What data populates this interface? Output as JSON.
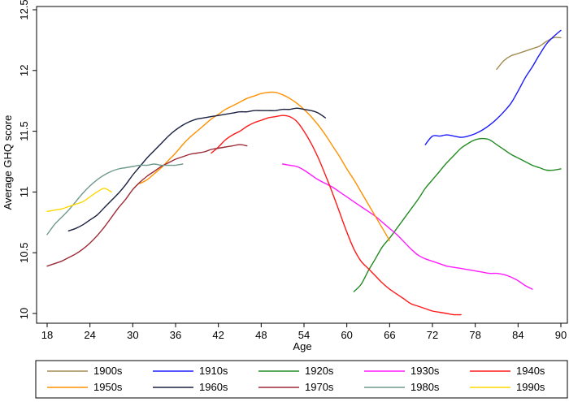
{
  "chart_data": {
    "type": "line",
    "title": "",
    "xlabel": "Age",
    "ylabel": "Average GHQ score",
    "xlim": [
      18,
      90
    ],
    "ylim": [
      10,
      12.5
    ],
    "xticks": [
      18,
      24,
      30,
      36,
      42,
      48,
      54,
      60,
      66,
      72,
      78,
      84,
      90
    ],
    "yticks": [
      10,
      10.5,
      11,
      11.5,
      12,
      12.5
    ],
    "xtick_labels": [
      "18",
      "24",
      "30",
      "36",
      "42",
      "48",
      "54",
      "60",
      "66",
      "72",
      "78",
      "84",
      "90"
    ],
    "ytick_labels": [
      "10",
      "10.5",
      "11",
      "11.5",
      "12",
      "12.5"
    ],
    "grid": false,
    "legend_position": "bottom",
    "series": [
      {
        "name": "1900s",
        "color": "#a08c50",
        "x": [
          81,
          82,
          83,
          84,
          85,
          86,
          87,
          88,
          89,
          90
        ],
        "y": [
          12.01,
          12.08,
          12.12,
          12.14,
          12.16,
          12.18,
          12.2,
          12.24,
          12.27,
          12.27
        ]
      },
      {
        "name": "1910s",
        "color": "#1a1aff",
        "x": [
          71,
          72,
          73,
          74,
          75,
          76,
          77,
          78,
          79,
          80,
          81,
          82,
          83,
          84,
          85,
          86,
          87,
          88,
          89,
          90
        ],
        "y": [
          11.39,
          11.46,
          11.46,
          11.47,
          11.46,
          11.45,
          11.46,
          11.48,
          11.51,
          11.55,
          11.6,
          11.66,
          11.73,
          11.83,
          11.94,
          12.03,
          12.13,
          12.22,
          12.28,
          12.33
        ]
      },
      {
        "name": "1920s",
        "color": "#228b22",
        "x": [
          61,
          62,
          63,
          64,
          65,
          66,
          67,
          68,
          69,
          70,
          71,
          72,
          73,
          74,
          75,
          76,
          77,
          78,
          79,
          80,
          81,
          82,
          83,
          84,
          85,
          86,
          87,
          88,
          89,
          90
        ],
        "y": [
          10.18,
          10.24,
          10.35,
          10.45,
          10.55,
          10.62,
          10.7,
          10.78,
          10.86,
          10.94,
          11.03,
          11.1,
          11.17,
          11.24,
          11.3,
          11.36,
          11.4,
          11.43,
          11.44,
          11.43,
          11.39,
          11.35,
          11.31,
          11.28,
          11.25,
          11.22,
          11.2,
          11.18,
          11.18,
          11.19
        ]
      },
      {
        "name": "1930s",
        "color": "#ff1aff",
        "x": [
          51,
          52,
          53,
          54,
          55,
          56,
          57,
          58,
          59,
          60,
          61,
          62,
          63,
          64,
          65,
          66,
          67,
          68,
          69,
          70,
          71,
          72,
          73,
          74,
          75,
          76,
          77,
          78,
          79,
          80,
          81,
          82,
          83,
          84,
          85,
          86
        ],
        "y": [
          11.23,
          11.22,
          11.21,
          11.18,
          11.14,
          11.1,
          11.07,
          11.04,
          11.0,
          10.96,
          10.92,
          10.88,
          10.84,
          10.8,
          10.75,
          10.7,
          10.65,
          10.59,
          10.53,
          10.48,
          10.45,
          10.43,
          10.41,
          10.39,
          10.38,
          10.37,
          10.36,
          10.35,
          10.34,
          10.33,
          10.33,
          10.32,
          10.3,
          10.27,
          10.23,
          10.2
        ]
      },
      {
        "name": "1940s",
        "color": "#ff1a1a",
        "x": [
          41,
          42,
          43,
          44,
          45,
          46,
          47,
          48,
          49,
          50,
          51,
          52,
          53,
          54,
          55,
          56,
          57,
          58,
          59,
          60,
          61,
          62,
          63,
          64,
          65,
          66,
          67,
          68,
          69,
          70,
          71,
          72,
          73,
          74,
          75,
          76
        ],
        "y": [
          11.32,
          11.37,
          11.43,
          11.47,
          11.5,
          11.54,
          11.57,
          11.59,
          11.61,
          11.62,
          11.63,
          11.62,
          11.58,
          11.5,
          11.4,
          11.28,
          11.14,
          10.99,
          10.83,
          10.67,
          10.53,
          10.43,
          10.37,
          10.31,
          10.25,
          10.2,
          10.16,
          10.12,
          10.08,
          10.06,
          10.04,
          10.02,
          10.01,
          10.0,
          9.99,
          9.99
        ]
      },
      {
        "name": "1950s",
        "color": "#ff9000",
        "x": [
          31,
          32,
          33,
          34,
          35,
          36,
          37,
          38,
          39,
          40,
          41,
          42,
          43,
          44,
          45,
          46,
          47,
          48,
          49,
          50,
          51,
          52,
          53,
          54,
          55,
          56,
          57,
          58,
          59,
          60,
          61,
          62,
          63,
          64,
          65,
          66
        ],
        "y": [
          11.07,
          11.1,
          11.15,
          11.2,
          11.26,
          11.32,
          11.39,
          11.45,
          11.5,
          11.55,
          11.6,
          11.64,
          11.68,
          11.71,
          11.74,
          11.77,
          11.79,
          11.81,
          11.82,
          11.82,
          11.8,
          11.77,
          11.73,
          11.68,
          11.62,
          11.55,
          11.47,
          11.38,
          11.29,
          11.19,
          11.1,
          11.0,
          10.9,
          10.8,
          10.7,
          10.6
        ]
      },
      {
        "name": "1960s",
        "color": "#1a2040",
        "x": [
          21,
          22,
          23,
          24,
          25,
          26,
          27,
          28,
          29,
          30,
          31,
          32,
          33,
          34,
          35,
          36,
          37,
          38,
          39,
          40,
          41,
          42,
          43,
          44,
          45,
          46,
          47,
          48,
          49,
          50,
          51,
          52,
          53,
          54,
          55,
          56,
          57
        ],
        "y": [
          10.68,
          10.7,
          10.73,
          10.77,
          10.81,
          10.87,
          10.93,
          10.99,
          11.06,
          11.14,
          11.21,
          11.28,
          11.34,
          11.4,
          11.46,
          11.51,
          11.55,
          11.58,
          11.6,
          11.61,
          11.62,
          11.63,
          11.64,
          11.65,
          11.66,
          11.66,
          11.67,
          11.67,
          11.67,
          11.67,
          11.68,
          11.68,
          11.69,
          11.68,
          11.67,
          11.65,
          11.61
        ]
      },
      {
        "name": "1970s",
        "color": "#9b2a35",
        "x": [
          18,
          19,
          20,
          21,
          22,
          23,
          24,
          25,
          26,
          27,
          28,
          29,
          30,
          31,
          32,
          33,
          34,
          35,
          36,
          37,
          38,
          39,
          40,
          41,
          42,
          43,
          44,
          45,
          46
        ],
        "y": [
          10.39,
          10.41,
          10.43,
          10.46,
          10.49,
          10.53,
          10.58,
          10.64,
          10.71,
          10.79,
          10.87,
          10.94,
          11.02,
          11.08,
          11.13,
          11.17,
          11.21,
          11.24,
          11.27,
          11.29,
          11.31,
          11.32,
          11.33,
          11.35,
          11.36,
          11.37,
          11.38,
          11.39,
          11.38
        ]
      },
      {
        "name": "1980s",
        "color": "#6f9a8a",
        "x": [
          18,
          19,
          20,
          21,
          22,
          23,
          24,
          25,
          26,
          27,
          28,
          29,
          30,
          31,
          32,
          33,
          34,
          35,
          36,
          37
        ],
        "y": [
          10.65,
          10.73,
          10.79,
          10.85,
          10.92,
          10.99,
          11.05,
          11.1,
          11.14,
          11.17,
          11.19,
          11.2,
          11.21,
          11.22,
          11.22,
          11.23,
          11.22,
          11.22,
          11.22,
          11.23
        ]
      },
      {
        "name": "1990s",
        "color": "#ffd700",
        "x": [
          18,
          19,
          20,
          21,
          22,
          23,
          24,
          25,
          26,
          27
        ],
        "y": [
          10.84,
          10.85,
          10.86,
          10.88,
          10.9,
          10.92,
          10.96,
          11.0,
          11.03,
          11.0
        ]
      }
    ]
  }
}
